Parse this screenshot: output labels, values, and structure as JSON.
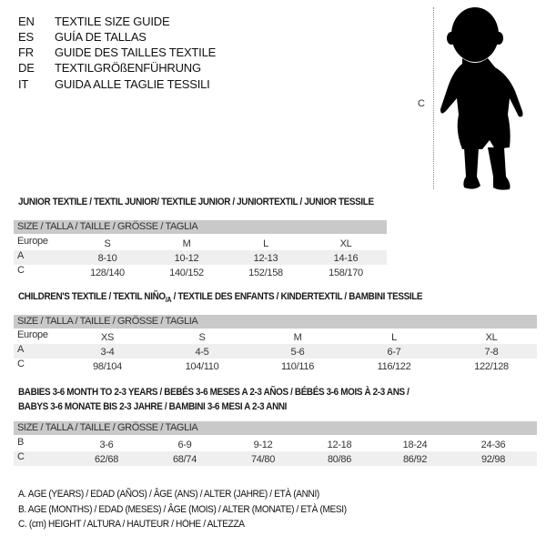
{
  "header": {
    "languages": [
      {
        "code": "EN",
        "text": "TEXTILE SIZE GUIDE"
      },
      {
        "code": "ES",
        "text": "GUÍA DE TALLAS"
      },
      {
        "code": "FR",
        "text": "GUIDE DES TAILLES TEXTILE"
      },
      {
        "code": "DE",
        "text": "TEXTILGRÖßENFÜHRUNG"
      },
      {
        "code": "IT",
        "text": "GUIDA ALLE TAGLIE TESSILI"
      }
    ]
  },
  "figure": {
    "measure_label": "C",
    "icon": "baby-silhouette-icon"
  },
  "junior": {
    "title": "JUNIOR TEXTILE / TEXTIL JUNIOR/ TEXTILE JUNIOR / JUNIORTEXTIL / JUNIOR TESSILE",
    "header": "SIZE / TALLA / TAILLE / GRÖSSE / TAGLIA",
    "rows": [
      {
        "label": "Europe",
        "cells": [
          "S",
          "M",
          "L",
          "XL"
        ]
      },
      {
        "label": "A",
        "cells": [
          "8-10",
          "10-12",
          "12-13",
          "14-16"
        ]
      },
      {
        "label": "C",
        "cells": [
          "128/140",
          "140/152",
          "152/158",
          "158/170"
        ]
      }
    ]
  },
  "children": {
    "title": "CHILDREN'S TEXTILE / TEXTIL NIÑO",
    "title_sub": "/A",
    "title_rest": " / TEXTILE DES ENFANTS / KINDERTEXTIL / BAMBINI TESSILE",
    "header": "SIZE / TALLA / TAILLE / GRÖSSE / TAGLIA",
    "rows": [
      {
        "label": "Europe",
        "cells": [
          "XS",
          "S",
          "M",
          "L",
          "XL"
        ]
      },
      {
        "label": "A",
        "cells": [
          "3-4",
          "4-5",
          "5-6",
          "6-7",
          "7-8"
        ]
      },
      {
        "label": "C",
        "cells": [
          "98/104",
          "104/110",
          "110/116",
          "116/122",
          "122/128"
        ]
      }
    ]
  },
  "babies": {
    "title_line1": "BABIES 3-6 MONTH TO 2-3 YEARS / BEBÉS 3-6 MESES A 2-3 AÑOS / BÉBÉS 3-6 MOIS À 2-3 ANS /",
    "title_line2": "BABYS 3-6 MONATE BIS 2-3 JAHRE / BAMBINI 3-6 MESI A 2-3 ANNI",
    "header": "SIZE / TALLA / TAILLE / GRÖSSE / TAGLIA",
    "rows": [
      {
        "label": "B",
        "cells": [
          "3-6",
          "6-9",
          "9-12",
          "12-18",
          "18-24",
          "24-36"
        ]
      },
      {
        "label": "C",
        "cells": [
          "62/68",
          "68/74",
          "74/80",
          "80/86",
          "86/92",
          "92/98"
        ]
      }
    ]
  },
  "legend": [
    "A. AGE (YEARS) / EDAD (AÑOS) / ÂGE (ANS) / ALTER (JAHRE) / ETÀ (ANNI)",
    "B. AGE (MONTHS) / EDAD (MESES) / ÂGE (MOIS) / ALTER (MONATE) / ETÀ (MESI)",
    "C. (cm) HEIGHT / ALTURA / HAUTEUR / HÖHE / ALTEZZA"
  ]
}
